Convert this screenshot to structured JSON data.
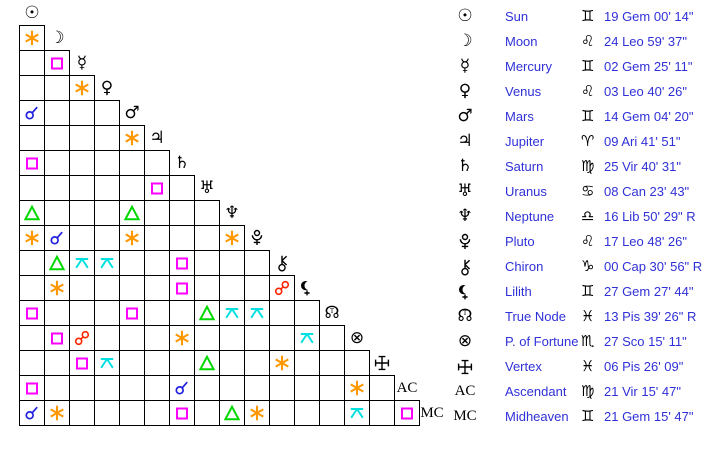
{
  "colors": {
    "background": "#ffffff",
    "grid_line": "#000000",
    "glyph_black": "#000000",
    "text_blue": "#3030d8"
  },
  "aspect_styles": {
    "conjunction": {
      "color": "#2020dd"
    },
    "sextile": {
      "color": "#ff9800"
    },
    "square": {
      "color": "#ff00ff"
    },
    "trine": {
      "color": "#00d800"
    },
    "opposition": {
      "color": "#ff2400"
    },
    "quincunx": {
      "color": "#00e0e0"
    }
  },
  "planets": [
    {
      "id": "sun",
      "symbol": "☉",
      "name": "Sun",
      "sign": "♊",
      "position": "19 Gem 00' 14\""
    },
    {
      "id": "moon",
      "symbol": "☽",
      "name": "Moon",
      "sign": "♌",
      "position": "24 Leo 59' 37\""
    },
    {
      "id": "mercury",
      "symbol": "☿",
      "name": "Mercury",
      "sign": "♊",
      "position": "02 Gem 25' 11\""
    },
    {
      "id": "venus",
      "symbol": "♀",
      "name": "Venus",
      "sign": "♌",
      "position": "03 Leo 40' 26\""
    },
    {
      "id": "mars",
      "symbol": "♂",
      "name": "Mars",
      "sign": "♊",
      "position": "14 Gem 04' 20\""
    },
    {
      "id": "jupiter",
      "symbol": "♃",
      "name": "Jupiter",
      "sign": "♈",
      "position": "09 Ari 41' 51\""
    },
    {
      "id": "saturn",
      "symbol": "♄",
      "name": "Saturn",
      "sign": "♍",
      "position": "25 Vir 40' 31\""
    },
    {
      "id": "uranus",
      "symbol": "♅",
      "name": "Uranus",
      "sign": "♋",
      "position": "08 Can 23' 43\""
    },
    {
      "id": "neptune",
      "symbol": "♆",
      "name": "Neptune",
      "sign": "♎",
      "position": "16 Lib 50' 29\" R"
    },
    {
      "id": "pluto",
      "symbol": "♇",
      "name": "Pluto",
      "sign": "♌",
      "position": "17 Leo 48' 26\""
    },
    {
      "id": "chiron",
      "symbol": "⚷",
      "name": "Chiron",
      "sign": "♑",
      "position": "00 Cap 30' 56\" R"
    },
    {
      "id": "lilith",
      "symbol": "⚸",
      "name": "Lilith",
      "sign": "♊",
      "position": "27 Gem 27' 44\""
    },
    {
      "id": "truenode",
      "symbol": "☊",
      "name": "True Node",
      "sign": "♓",
      "position": "13 Pis 39' 26\" R"
    },
    {
      "id": "fortune",
      "symbol": "⊗",
      "name": "P. of Fortune",
      "sign": "♏",
      "position": "27 Sco 15' 11\""
    },
    {
      "id": "vertex",
      "symbol": "+",
      "name": "Vertex",
      "sign": "♓",
      "position": "06 Pis 26' 09\""
    },
    {
      "id": "ascendant",
      "symbol": "AC",
      "name": "Ascendant",
      "sign": "♍",
      "position": "21 Vir 15' 47\""
    },
    {
      "id": "midheaven",
      "symbol": "MC",
      "name": "Midheaven",
      "sign": "♊",
      "position": "21 Gem 15' 47\""
    }
  ],
  "aspects": [
    {
      "row": 2,
      "col": 1,
      "type": "sextile"
    },
    {
      "row": 3,
      "col": 2,
      "type": "square"
    },
    {
      "row": 4,
      "col": 3,
      "type": "sextile"
    },
    {
      "row": 5,
      "col": 1,
      "type": "conjunction"
    },
    {
      "row": 6,
      "col": 5,
      "type": "sextile"
    },
    {
      "row": 7,
      "col": 1,
      "type": "square"
    },
    {
      "row": 8,
      "col": 6,
      "type": "square"
    },
    {
      "row": 9,
      "col": 1,
      "type": "trine"
    },
    {
      "row": 9,
      "col": 5,
      "type": "trine"
    },
    {
      "row": 10,
      "col": 1,
      "type": "sextile"
    },
    {
      "row": 10,
      "col": 2,
      "type": "conjunction"
    },
    {
      "row": 10,
      "col": 5,
      "type": "sextile"
    },
    {
      "row": 10,
      "col": 9,
      "type": "sextile"
    },
    {
      "row": 11,
      "col": 2,
      "type": "trine"
    },
    {
      "row": 11,
      "col": 3,
      "type": "quincunx"
    },
    {
      "row": 11,
      "col": 4,
      "type": "quincunx"
    },
    {
      "row": 11,
      "col": 7,
      "type": "square"
    },
    {
      "row": 12,
      "col": 2,
      "type": "sextile"
    },
    {
      "row": 12,
      "col": 7,
      "type": "square"
    },
    {
      "row": 12,
      "col": 11,
      "type": "opposition"
    },
    {
      "row": 13,
      "col": 1,
      "type": "square"
    },
    {
      "row": 13,
      "col": 5,
      "type": "square"
    },
    {
      "row": 13,
      "col": 8,
      "type": "trine"
    },
    {
      "row": 13,
      "col": 9,
      "type": "quincunx"
    },
    {
      "row": 13,
      "col": 10,
      "type": "quincunx"
    },
    {
      "row": 14,
      "col": 2,
      "type": "square"
    },
    {
      "row": 14,
      "col": 3,
      "type": "opposition"
    },
    {
      "row": 14,
      "col": 7,
      "type": "sextile"
    },
    {
      "row": 14,
      "col": 12,
      "type": "quincunx"
    },
    {
      "row": 15,
      "col": 3,
      "type": "square"
    },
    {
      "row": 15,
      "col": 4,
      "type": "quincunx"
    },
    {
      "row": 15,
      "col": 8,
      "type": "trine"
    },
    {
      "row": 15,
      "col": 11,
      "type": "sextile"
    },
    {
      "row": 16,
      "col": 1,
      "type": "square"
    },
    {
      "row": 16,
      "col": 7,
      "type": "conjunction"
    },
    {
      "row": 16,
      "col": 14,
      "type": "sextile"
    },
    {
      "row": 17,
      "col": 1,
      "type": "conjunction"
    },
    {
      "row": 17,
      "col": 2,
      "type": "sextile"
    },
    {
      "row": 17,
      "col": 7,
      "type": "square"
    },
    {
      "row": 17,
      "col": 9,
      "type": "trine"
    },
    {
      "row": 17,
      "col": 10,
      "type": "sextile"
    },
    {
      "row": 17,
      "col": 14,
      "type": "quincunx"
    },
    {
      "row": 17,
      "col": 16,
      "type": "square"
    }
  ]
}
